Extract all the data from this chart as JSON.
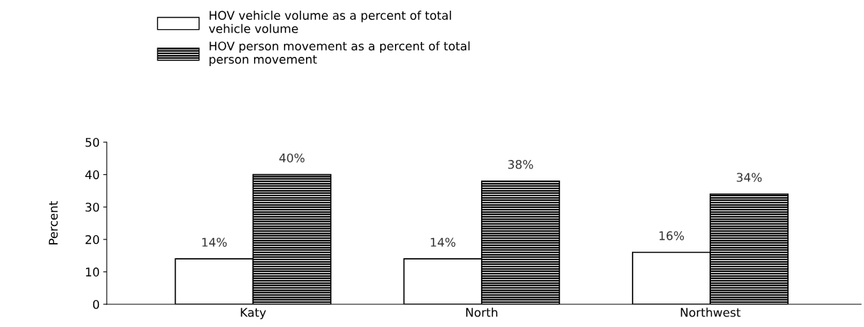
{
  "chart_data": {
    "type": "bar",
    "ylabel": "Percent",
    "categories": [
      "Katy",
      "North",
      "Northwest"
    ],
    "series": [
      {
        "name": "HOV vehicle volume as a percent of total\nvehicle volume",
        "color": "#ffffff",
        "values": [
          14,
          14,
          16
        ],
        "value_labels": [
          "14%",
          "14%",
          "16%"
        ]
      },
      {
        "name": "HOV person movement as a percent of total\nperson movement",
        "color": "#000000",
        "values": [
          40,
          38,
          34
        ],
        "value_labels": [
          "40%",
          "38%",
          "34%"
        ]
      }
    ],
    "ylim": [
      0,
      50
    ],
    "yticks": [
      0,
      10,
      20,
      30,
      40,
      50
    ],
    "grid": false,
    "legend": "top left"
  }
}
